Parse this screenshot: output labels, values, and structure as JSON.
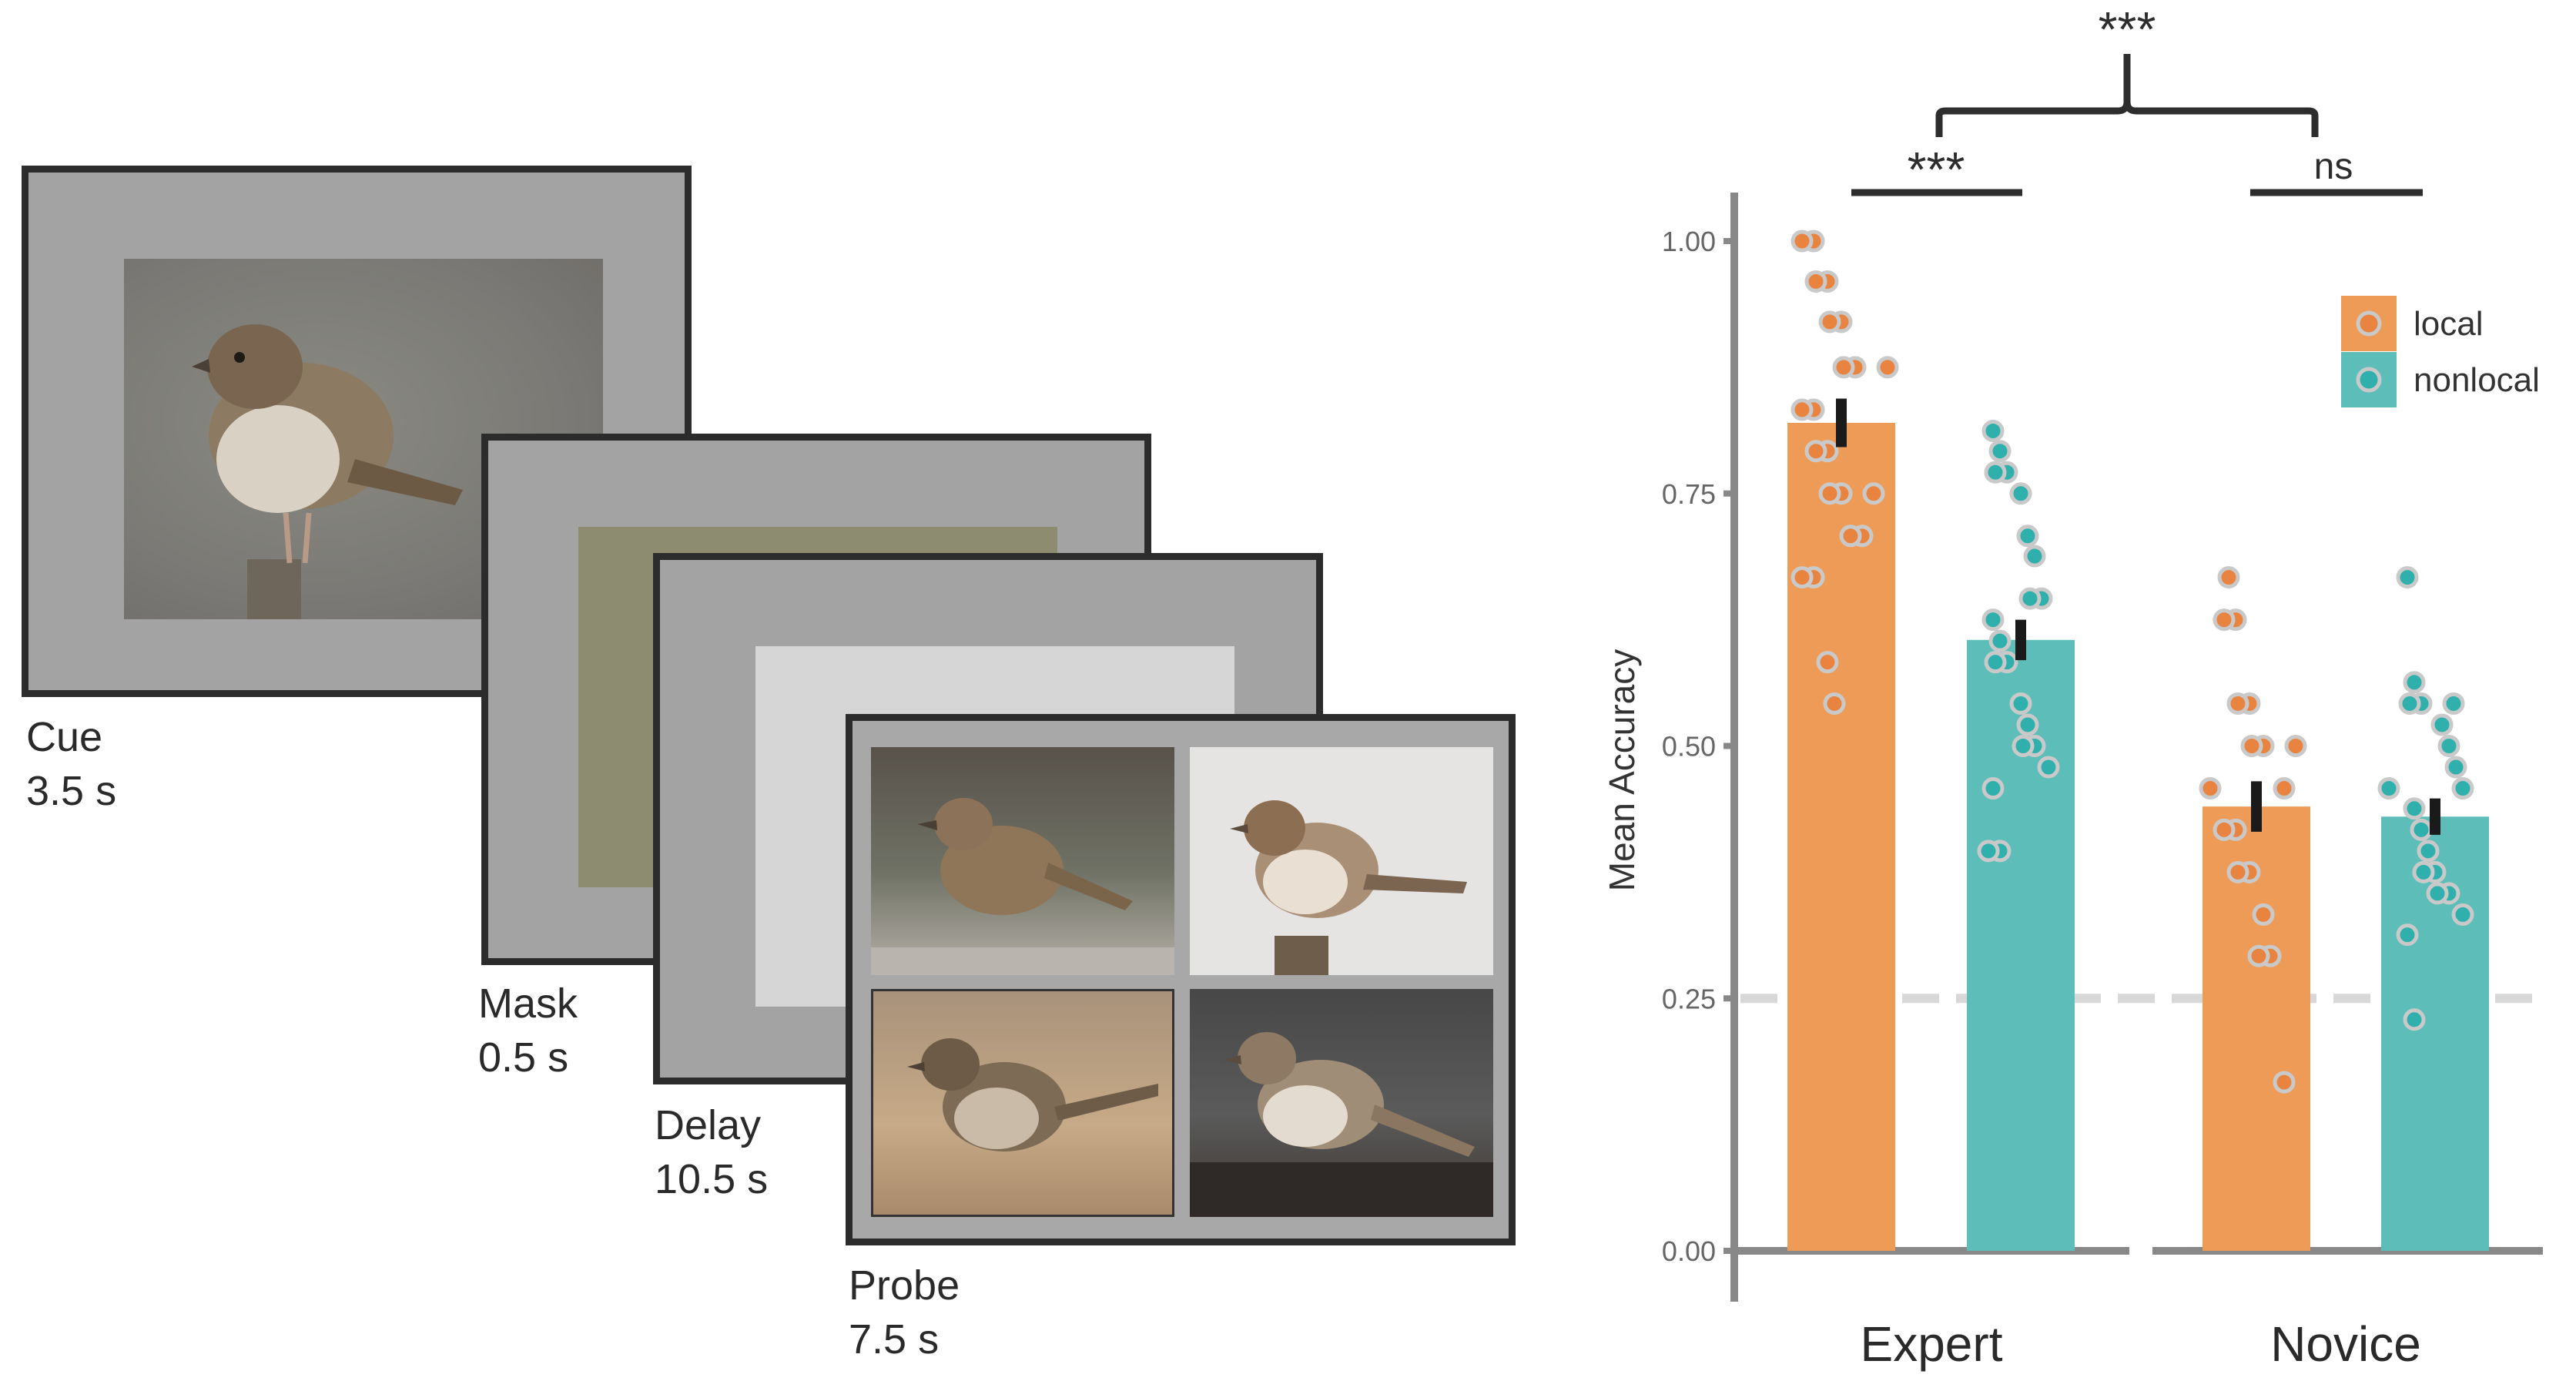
{
  "trial": {
    "frames": [
      {
        "name": "Cue",
        "duration": "3.5 s"
      },
      {
        "name": "Mask",
        "duration": "0.5 s"
      },
      {
        "name": "Delay",
        "duration": "10.5 s"
      },
      {
        "name": "Probe",
        "duration": "7.5 s"
      }
    ]
  },
  "colors": {
    "local": "#ee9b58",
    "nonlocal": "#5dbdb9",
    "local_dot": "#e8843f",
    "nonlocal_dot": "#2fb0ac",
    "axis": "#888888"
  },
  "chart_data": {
    "type": "bar",
    "ylabel": "Mean Accuracy",
    "ylim": [
      0,
      1.0
    ],
    "yticks": [
      "0.00",
      "0.25",
      "0.50",
      "0.75",
      "1.00"
    ],
    "ytick_values": [
      0,
      0.25,
      0.5,
      0.75,
      1.0
    ],
    "chance_level": 0.25,
    "groups": [
      "Expert",
      "Novice"
    ],
    "legend": {
      "position": "top-right",
      "entries": [
        "local",
        "nonlocal"
      ]
    },
    "series": [
      {
        "name": "local",
        "values": [
          0.82,
          0.44
        ],
        "errors": [
          0.024,
          0.025
        ],
        "points": [
          [
            1.0,
            1.0,
            0.96,
            0.96,
            0.92,
            0.92,
            0.875,
            0.875,
            0.875,
            0.833,
            0.833,
            0.792,
            0.792,
            0.75,
            0.75,
            0.75,
            0.708,
            0.708,
            0.667,
            0.667,
            0.583,
            0.542
          ],
          [
            0.667,
            0.625,
            0.625,
            0.542,
            0.542,
            0.5,
            0.5,
            0.5,
            0.458,
            0.458,
            0.417,
            0.417,
            0.375,
            0.375,
            0.333,
            0.292,
            0.292,
            0.167
          ]
        ]
      },
      {
        "name": "nonlocal",
        "values": [
          0.605,
          0.43
        ],
        "errors": [
          0.02,
          0.018
        ],
        "points": [
          [
            0.812,
            0.792,
            0.771,
            0.771,
            0.75,
            0.708,
            0.688,
            0.646,
            0.646,
            0.625,
            0.604,
            0.583,
            0.583,
            0.542,
            0.521,
            0.5,
            0.5,
            0.479,
            0.458,
            0.396,
            0.396
          ],
          [
            0.667,
            0.563,
            0.542,
            0.542,
            0.542,
            0.521,
            0.5,
            0.479,
            0.458,
            0.458,
            0.438,
            0.417,
            0.396,
            0.375,
            0.375,
            0.354,
            0.354,
            0.333,
            0.313,
            0.229
          ]
        ]
      }
    ],
    "significance": [
      {
        "label": "***",
        "span": "Expert local vs nonlocal"
      },
      {
        "label": "ns",
        "span": "Novice local vs nonlocal"
      },
      {
        "label": "***",
        "span": "Expert vs Novice"
      }
    ]
  }
}
